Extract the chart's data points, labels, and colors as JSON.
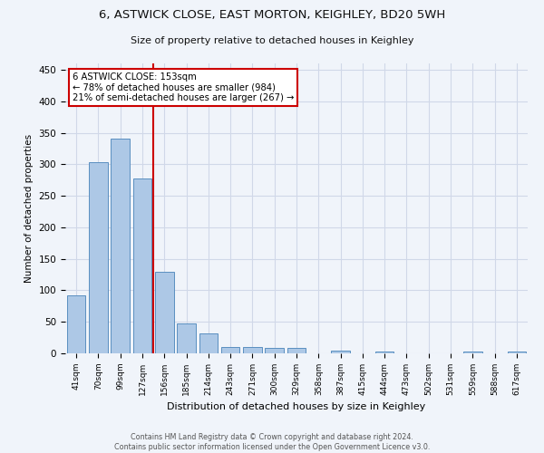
{
  "title": "6, ASTWICK CLOSE, EAST MORTON, KEIGHLEY, BD20 5WH",
  "subtitle": "Size of property relative to detached houses in Keighley",
  "xlabel": "Distribution of detached houses by size in Keighley",
  "ylabel": "Number of detached properties",
  "footer_line1": "Contains HM Land Registry data © Crown copyright and database right 2024.",
  "footer_line2": "Contains public sector information licensed under the Open Government Licence v3.0.",
  "categories": [
    "41sqm",
    "70sqm",
    "99sqm",
    "127sqm",
    "156sqm",
    "185sqm",
    "214sqm",
    "243sqm",
    "271sqm",
    "300sqm",
    "329sqm",
    "358sqm",
    "387sqm",
    "415sqm",
    "444sqm",
    "473sqm",
    "502sqm",
    "531sqm",
    "559sqm",
    "588sqm",
    "617sqm"
  ],
  "values": [
    92,
    303,
    340,
    277,
    130,
    47,
    31,
    10,
    10,
    8,
    8,
    0,
    4,
    0,
    3,
    0,
    0,
    0,
    3,
    0,
    3
  ],
  "bar_color": "#adc8e6",
  "bar_edge_color": "#5a8fc0",
  "grid_color": "#d0d8e8",
  "background_color": "#f0f4fa",
  "property_label": "6 ASTWICK CLOSE: 153sqm",
  "annotation_line1": "← 78% of detached houses are smaller (984)",
  "annotation_line2": "21% of semi-detached houses are larger (267) →",
  "vline_x_index": 3.5,
  "ylim": [
    0,
    460
  ],
  "annotation_box_color": "#ffffff",
  "annotation_box_edge_color": "#cc0000",
  "vline_color": "#cc0000",
  "yticks": [
    0,
    50,
    100,
    150,
    200,
    250,
    300,
    350,
    400,
    450
  ]
}
